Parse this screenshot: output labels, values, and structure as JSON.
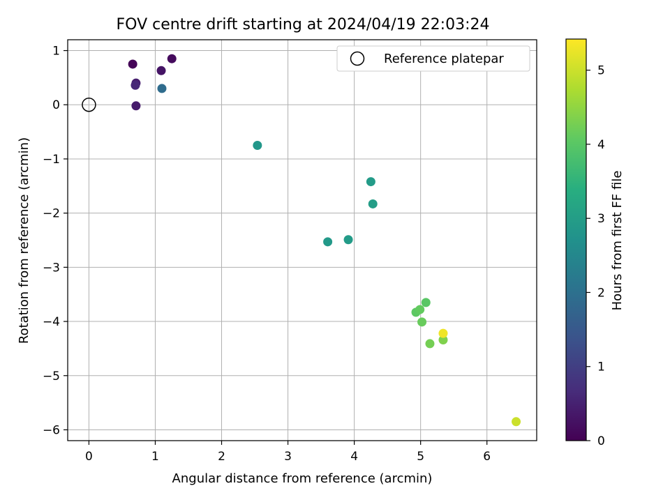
{
  "chart_data": {
    "type": "scatter",
    "title": "FOV centre drift starting at 2024/04/19 22:03:24",
    "xlabel": "Angular distance from reference (arcmin)",
    "ylabel": "Rotation from reference (arcmin)",
    "xlim": [
      -0.32,
      6.75
    ],
    "ylim": [
      -6.2,
      1.2
    ],
    "xticks": [
      0,
      1,
      2,
      3,
      4,
      5,
      6
    ],
    "yticks": [
      1,
      0,
      -1,
      -2,
      -3,
      -4,
      -5,
      -6
    ],
    "xtick_labels": [
      "0",
      "1",
      "2",
      "3",
      "4",
      "5",
      "6"
    ],
    "ytick_labels": [
      "1",
      "0",
      "−1",
      "−2",
      "−3",
      "−4",
      "−5",
      "−6"
    ],
    "grid": true,
    "legend": {
      "position": "top-right",
      "entries": [
        "Reference platepar"
      ]
    },
    "reference_point": {
      "x": 0,
      "y": 0,
      "label": "Reference platepar"
    },
    "colorbar": {
      "label": "Hours from first FF file",
      "colormap": "viridis",
      "range": [
        0,
        5.42
      ],
      "ticks": [
        0,
        1,
        2,
        3,
        4,
        5
      ],
      "tick_labels": [
        "0",
        "1",
        "2",
        "3",
        "4",
        "5"
      ]
    },
    "points": [
      {
        "x": 0.66,
        "y": 0.75,
        "c": 0.05
      },
      {
        "x": 1.25,
        "y": 0.85,
        "c": 0.15
      },
      {
        "x": 1.09,
        "y": 0.63,
        "c": 0.3
      },
      {
        "x": 0.71,
        "y": 0.4,
        "c": 0.45
      },
      {
        "x": 0.7,
        "y": 0.36,
        "c": 0.6
      },
      {
        "x": 0.71,
        "y": -0.02,
        "c": 0.4
      },
      {
        "x": 1.1,
        "y": 0.3,
        "c": 1.9
      },
      {
        "x": 2.54,
        "y": -0.75,
        "c": 2.85
      },
      {
        "x": 4.25,
        "y": -1.42,
        "c": 2.95
      },
      {
        "x": 4.28,
        "y": -1.83,
        "c": 3.0
      },
      {
        "x": 3.6,
        "y": -2.53,
        "c": 2.9
      },
      {
        "x": 3.91,
        "y": -2.49,
        "c": 2.95
      },
      {
        "x": 5.08,
        "y": -3.65,
        "c": 4.0
      },
      {
        "x": 4.93,
        "y": -3.83,
        "c": 4.05
      },
      {
        "x": 4.99,
        "y": -3.78,
        "c": 4.1
      },
      {
        "x": 5.02,
        "y": -4.01,
        "c": 4.15
      },
      {
        "x": 5.14,
        "y": -4.41,
        "c": 4.25
      },
      {
        "x": 5.34,
        "y": -4.34,
        "c": 4.35
      },
      {
        "x": 5.34,
        "y": -4.22,
        "c": 5.3
      },
      {
        "x": 6.44,
        "y": -5.85,
        "c": 5.0
      }
    ]
  }
}
